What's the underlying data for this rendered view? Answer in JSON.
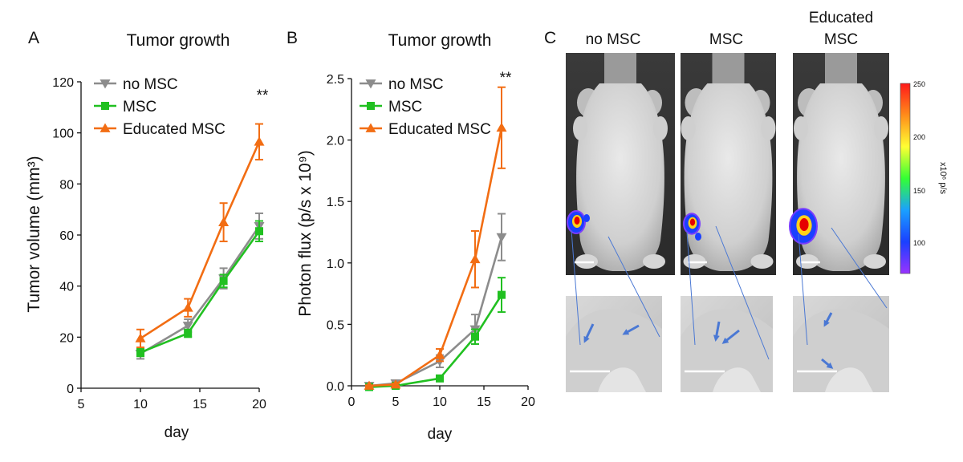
{
  "figure": {
    "panel_a_letter": "A",
    "panel_b_letter": "B",
    "panel_c_letter": "C"
  },
  "panel_c": {
    "labels": [
      "no MSC",
      "MSC",
      "Educated",
      "MSC"
    ],
    "colorbar": {
      "ticks": [
        "250",
        "200",
        "150",
        "100"
      ],
      "unit": "x10⁶ p/s",
      "colors": [
        "#ff1a1a",
        "#ff8c1a",
        "#ffff33",
        "#33ff33",
        "#1aa0ff",
        "#1a40ff",
        "#9933ff"
      ]
    },
    "signal_colors": {
      "core": "#e60000",
      "mid": "#ffd21a",
      "edge": "#1a40ff",
      "outer": "#7a3cff"
    },
    "arrow_color": "#4a78d4"
  },
  "chart_data": [
    {
      "type": "line",
      "title": "Tumor growth",
      "xlabel": "day",
      "ylabel": "Tumor volume (mm³)",
      "xlim": [
        5,
        20
      ],
      "ylim": [
        0,
        120
      ],
      "xticks": [
        "5",
        "10",
        "15",
        "20"
      ],
      "yticks": [
        "0",
        "20",
        "40",
        "60",
        "80",
        "100",
        "120"
      ],
      "x": [
        10,
        14,
        17,
        20
      ],
      "series": [
        {
          "name": "no MSC",
          "color": "#8c8c8c",
          "marker": "triangle-down",
          "values": [
            13.5,
            24.5,
            43,
            63.5
          ],
          "err": [
            2,
            2.5,
            4,
            5
          ]
        },
        {
          "name": "MSC",
          "color": "#21c021",
          "marker": "square",
          "values": [
            14,
            21.5,
            42,
            61.5
          ],
          "err": [
            1.5,
            1.5,
            2.5,
            4
          ]
        },
        {
          "name": "Educated MSC",
          "color": "#f26d13",
          "marker": "triangle-up",
          "values": [
            19.5,
            31.5,
            65,
            96.5
          ],
          "err": [
            3.5,
            3.5,
            7.5,
            7
          ]
        }
      ],
      "annotation": "**",
      "legend": "top-left"
    },
    {
      "type": "line",
      "title": "Tumor growth",
      "xlabel": "day",
      "ylabel": "Photon flux  (p/s  x 10⁹)",
      "xlim": [
        0,
        20
      ],
      "ylim": [
        0,
        2.5
      ],
      "xticks": [
        "0",
        "5",
        "10",
        "15",
        "20"
      ],
      "yticks": [
        "0.0",
        "0.5",
        "1.0",
        "1.5",
        "2.0",
        "2.5"
      ],
      "x": [
        2,
        5,
        10,
        14,
        17
      ],
      "series": [
        {
          "name": "no MSC",
          "color": "#8c8c8c",
          "marker": "triangle-down",
          "values": [
            0.0,
            0.02,
            0.2,
            0.46,
            1.21
          ],
          "err": [
            0.01,
            0.01,
            0.05,
            0.12,
            0.19
          ]
        },
        {
          "name": "MSC",
          "color": "#21c021",
          "marker": "square",
          "values": [
            -0.01,
            0.0,
            0.06,
            0.4,
            0.74
          ],
          "err": [
            0.005,
            0.005,
            0.01,
            0.06,
            0.14
          ]
        },
        {
          "name": "Educated MSC",
          "color": "#f26d13",
          "marker": "triangle-up",
          "values": [
            0.0,
            0.01,
            0.25,
            1.03,
            2.1
          ],
          "err": [
            0.005,
            0.01,
            0.05,
            0.23,
            0.33
          ]
        }
      ],
      "annotation": "**",
      "legend": "top-left"
    }
  ]
}
